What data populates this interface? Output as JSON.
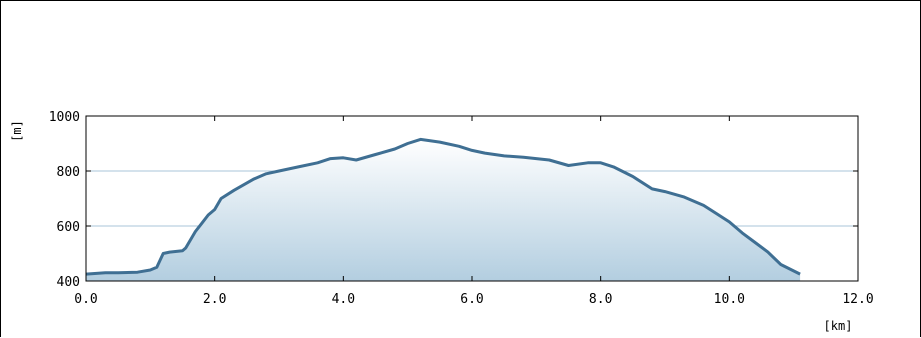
{
  "chart_data": {
    "type": "area",
    "title": "",
    "xlabel": "[km]",
    "ylabel": "[m]",
    "xlim": [
      0,
      12
    ],
    "ylim": [
      400,
      1000
    ],
    "x_ticks": [
      "0.0",
      "2.0",
      "4.0",
      "6.0",
      "8.0",
      "10.0",
      "12.0"
    ],
    "y_ticks": [
      "400",
      "600",
      "800",
      "1000"
    ],
    "x_tick_values": [
      0,
      2,
      4,
      6,
      8,
      10,
      12
    ],
    "y_tick_values": [
      400,
      600,
      800,
      1000
    ],
    "grid": "horizontal",
    "series": [
      {
        "x": [
          0.0,
          0.3,
          0.5,
          0.8,
          1.0,
          1.1,
          1.2,
          1.3,
          1.5,
          1.55,
          1.7,
          1.8,
          1.9,
          2.0,
          2.1,
          2.3,
          2.6,
          2.8,
          3.0,
          3.3,
          3.6,
          3.8,
          4.0,
          4.2,
          4.5,
          4.8,
          5.0,
          5.2,
          5.5,
          5.8,
          6.0,
          6.2,
          6.5,
          6.8,
          7.0,
          7.2,
          7.5,
          7.8,
          8.0,
          8.2,
          8.5,
          8.8,
          9.0,
          9.3,
          9.6,
          9.8,
          10.0,
          10.2,
          10.4,
          10.6,
          10.8,
          11.1
        ],
        "y": [
          425,
          430,
          430,
          432,
          440,
          450,
          500,
          505,
          510,
          520,
          580,
          610,
          640,
          660,
          700,
          730,
          770,
          790,
          800,
          815,
          830,
          845,
          848,
          840,
          860,
          880,
          900,
          915,
          905,
          890,
          875,
          865,
          855,
          850,
          845,
          840,
          820,
          830,
          830,
          815,
          780,
          735,
          725,
          705,
          675,
          645,
          615,
          575,
          540,
          505,
          460,
          425
        ]
      }
    ]
  },
  "colors": {
    "line": "#3f6f93",
    "fill_top": "#ffffff",
    "fill_bottom": "#b3cee0",
    "grid": "#a8c5d9",
    "axis": "#000000"
  }
}
